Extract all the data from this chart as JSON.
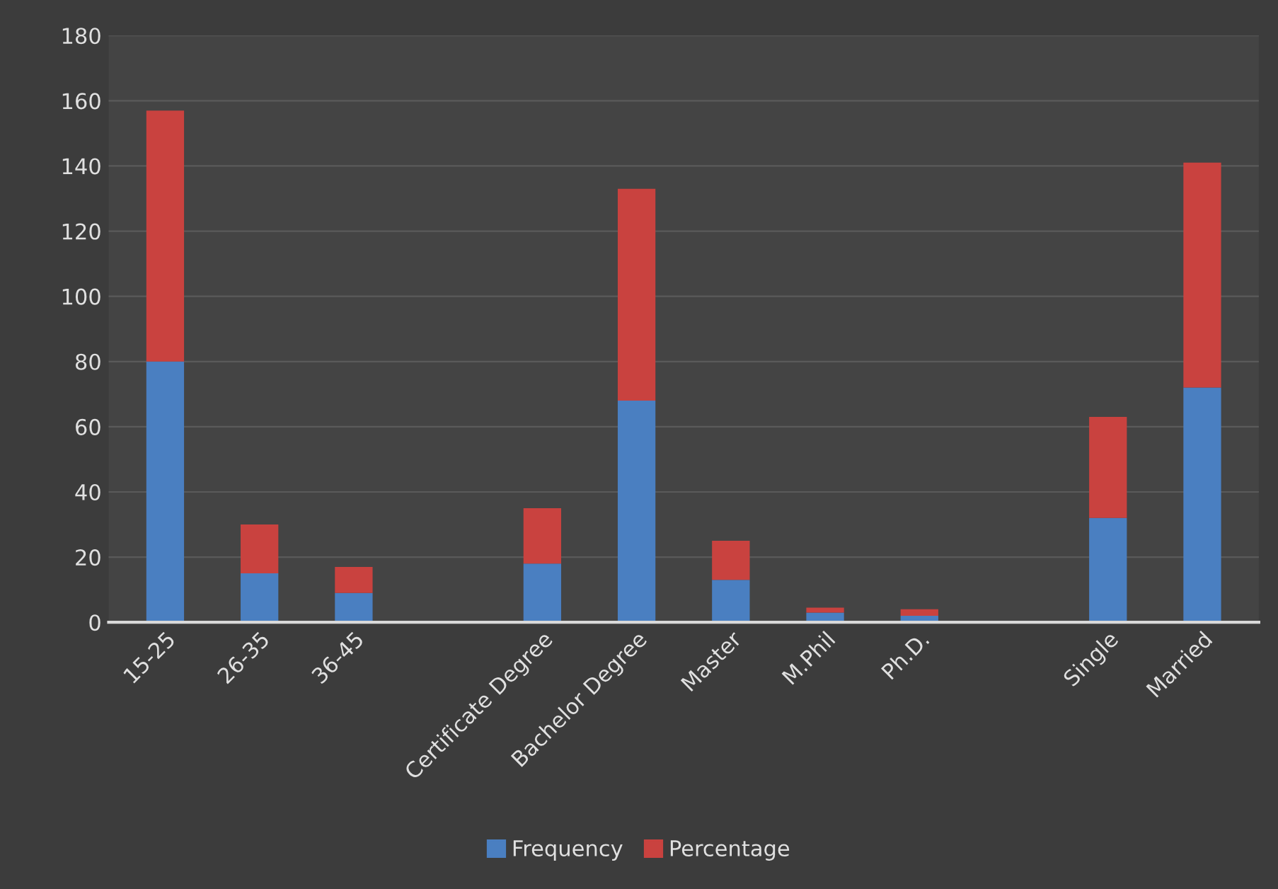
{
  "chart_data": {
    "type": "bar",
    "stacked": true,
    "categories": [
      "15-25",
      "26-35",
      "36-45",
      null,
      "Certificate Degree",
      "Bachelor Degree",
      "Master",
      "M.Phil",
      "Ph.D.",
      null,
      "Single",
      "Married"
    ],
    "series": [
      {
        "name": "Frequency",
        "color": "#4a7fc1",
        "values": [
          80,
          15,
          9,
          null,
          18,
          68,
          13,
          3,
          2,
          null,
          32,
          72
        ]
      },
      {
        "name": "Percentage",
        "color": "#c9423f",
        "values": [
          77,
          15,
          8,
          null,
          17,
          65,
          12,
          1.5,
          2,
          null,
          31,
          69
        ]
      }
    ],
    "ylim": [
      0,
      180
    ],
    "yticks": [
      0,
      20,
      40,
      60,
      80,
      100,
      120,
      140,
      160,
      180
    ],
    "grid": "y",
    "legend": "bottom"
  }
}
